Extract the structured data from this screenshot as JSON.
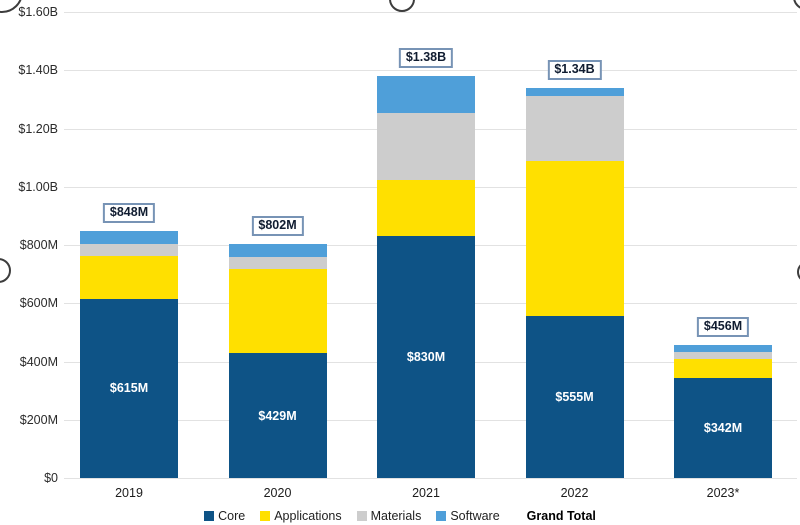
{
  "chart_data": {
    "type": "bar",
    "stacked": true,
    "title": "",
    "units": "USD (values in millions)",
    "categories": [
      "2019",
      "2020",
      "2021",
      "2022",
      "2023*"
    ],
    "series": [
      {
        "name": "Core",
        "color": "#0e5386",
        "values": [
          615,
          429,
          830,
          555,
          342
        ]
      },
      {
        "name": "Applications",
        "color": "#ffe000",
        "values": [
          147,
          290,
          194,
          535,
          67
        ]
      },
      {
        "name": "Materials",
        "color": "#cdcdcd",
        "values": [
          40,
          39,
          228,
          222,
          22
        ]
      },
      {
        "name": "Software",
        "color": "#4f9fd9",
        "values": [
          46,
          44,
          128,
          28,
          25
        ]
      }
    ],
    "grand_total_labels": [
      "$848M",
      "$802M",
      "$1.38B",
      "$1.34B",
      "$456M"
    ],
    "core_value_labels": [
      "$615M",
      "$429M",
      "$830M",
      "$555M",
      "$342M"
    ],
    "y_axis": {
      "tick_labels": [
        "$1.60B",
        "$1.40B",
        "$1.20B",
        "$1.00B",
        "$800M",
        "$600M",
        "$400M",
        "$200M",
        "$0"
      ],
      "min_m": 0,
      "max_m": 1600,
      "step_m": 200
    },
    "xlabel": "",
    "ylabel": "",
    "grid": true,
    "legend": {
      "position": "bottom",
      "items": [
        "Core",
        "Applications",
        "Materials",
        "Software"
      ],
      "total_label": "Grand Total"
    },
    "colors": {
      "core": "#0e5386",
      "applications": "#ffe000",
      "materials": "#cdcdcd",
      "software": "#4f9fd9",
      "gridline": "#e2e2e2",
      "total_box_border": "#7793b5",
      "total_box_text": "#101c30",
      "axis_text": "#2b2b2b",
      "core_label_text": "#ffffff"
    }
  }
}
